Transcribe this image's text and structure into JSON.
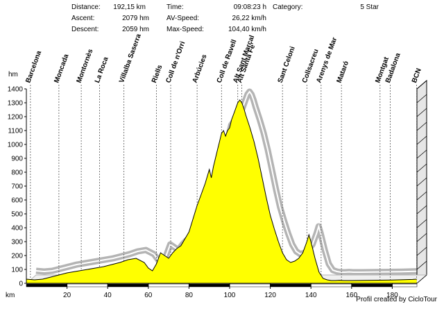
{
  "summary": {
    "distance_label": "Distance:",
    "distance_value": "192,15 km",
    "ascent_label": "Ascent:",
    "ascent_value": "2079 hm",
    "descent_label": "Descent:",
    "descent_value": "2059 hm",
    "time_label": "Time:",
    "time_value": "09:08:23 h",
    "avspeed_label": "AV-Speed:",
    "avspeed_value": "26,22 km/h",
    "maxspeed_label": "Max-Speed:",
    "maxspeed_value": "104,40 km/h",
    "category_label": "Category:",
    "category_value": "5 Star"
  },
  "credit": "Profil created by CicloTour",
  "colors": {
    "profile_fill": "#ffff00",
    "shadow": "#b4b4b4",
    "axis": "#000000",
    "background": "#ffffff"
  },
  "chart_data": {
    "type": "area",
    "xlabel": "km",
    "ylabel": "hm",
    "xlim": [
      0,
      192.15
    ],
    "ylim": [
      0,
      1400
    ],
    "x_ticks": [
      20,
      40,
      60,
      80,
      100,
      120,
      140,
      160,
      180
    ],
    "y_ticks": [
      0,
      100,
      200,
      300,
      400,
      500,
      600,
      700,
      800,
      900,
      1000,
      1100,
      1200,
      1300,
      1400
    ],
    "grid": false,
    "waypoints": [
      {
        "name": "Barcelona",
        "km": 2
      },
      {
        "name": "Moncada",
        "km": 16
      },
      {
        "name": "Montornès",
        "km": 27
      },
      {
        "name": "La Roca",
        "km": 36
      },
      {
        "name": "Villalba Saserra",
        "km": 48
      },
      {
        "name": "Riells",
        "km": 64
      },
      {
        "name": "Coll de n'Orri",
        "km": 71
      },
      {
        "name": "Arbúcies",
        "km": 84
      },
      {
        "name": "Coll de Ravell",
        "km": 96
      },
      {
        "name": "Alt Sant Marçal",
        "km": 104
      },
      {
        "name": "Alt Santa Fe",
        "km": 106
      },
      {
        "name": "Sant Celoni",
        "km": 126
      },
      {
        "name": "Collsacreu",
        "km": 138
      },
      {
        "name": "Arenys de Mar",
        "km": 145
      },
      {
        "name": "Mataró",
        "km": 155
      },
      {
        "name": "Montgat",
        "km": 174
      },
      {
        "name": "Badalona",
        "km": 179
      },
      {
        "name": "BCN",
        "km": 192
      }
    ],
    "series": [
      {
        "x": [
          0,
          4,
          8,
          12,
          16,
          20,
          26,
          30,
          34,
          38,
          42,
          46,
          50,
          54,
          58,
          60,
          62,
          64,
          66,
          68,
          70,
          72,
          74,
          76,
          80,
          84,
          86,
          88,
          90,
          91,
          92,
          93,
          94,
          95,
          96,
          97,
          98,
          99,
          100,
          101,
          102,
          103,
          104,
          105,
          106,
          107,
          108,
          110,
          112,
          114,
          116,
          118,
          120,
          122,
          124,
          126,
          128,
          130,
          132,
          134,
          136,
          138,
          139,
          140,
          142,
          144,
          146,
          148,
          150,
          152,
          154,
          156,
          160,
          170,
          180,
          186,
          190,
          192
        ],
        "y": [
          30,
          25,
          30,
          45,
          60,
          75,
          90,
          100,
          110,
          120,
          135,
          150,
          170,
          180,
          150,
          110,
          90,
          140,
          220,
          200,
          180,
          220,
          250,
          270,
          370,
          560,
          640,
          720,
          820,
          760,
          840,
          900,
          960,
          1020,
          1080,
          1100,
          1060,
          1100,
          1120,
          1180,
          1220,
          1260,
          1300,
          1320,
          1300,
          1260,
          1210,
          1120,
          1020,
          900,
          760,
          620,
          490,
          390,
          300,
          220,
          170,
          150,
          160,
          180,
          220,
          300,
          350,
          300,
          180,
          80,
          35,
          25,
          20,
          20,
          22,
          20,
          20,
          22,
          24,
          26,
          28,
          30
        ]
      }
    ]
  }
}
